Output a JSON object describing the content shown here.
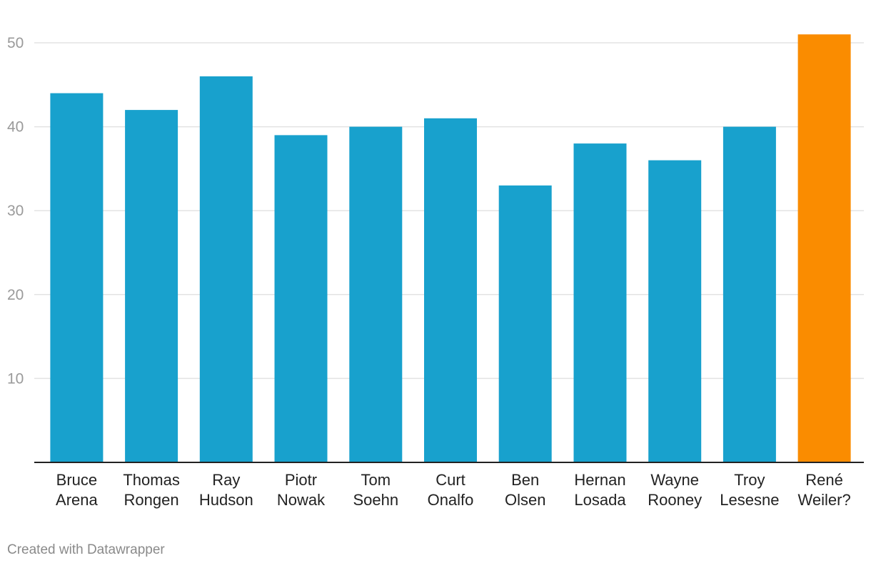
{
  "chart_data": {
    "type": "bar",
    "categories": [
      [
        "Bruce",
        "Arena"
      ],
      [
        "Thomas",
        "Rongen"
      ],
      [
        "Ray",
        "Hudson"
      ],
      [
        "Piotr",
        "Nowak"
      ],
      [
        "Tom",
        "Soehn"
      ],
      [
        "Curt",
        "Onalfo"
      ],
      [
        "Ben",
        "Olsen"
      ],
      [
        "Hernan",
        "Losada"
      ],
      [
        "Wayne",
        "Rooney"
      ],
      [
        "Troy",
        "Lesesne"
      ],
      [
        "René",
        "Weiler?"
      ]
    ],
    "values": [
      44,
      42,
      46,
      39,
      40,
      41,
      33,
      38,
      36,
      40,
      51
    ],
    "yticks": [
      10,
      20,
      30,
      40,
      50
    ],
    "ylim": [
      0,
      52
    ],
    "grid": true,
    "colors": {
      "default": "#18a1cd",
      "highlight": "#fa8c00",
      "highlight_index": 10
    }
  },
  "footer": {
    "credit": "Created with Datawrapper"
  }
}
